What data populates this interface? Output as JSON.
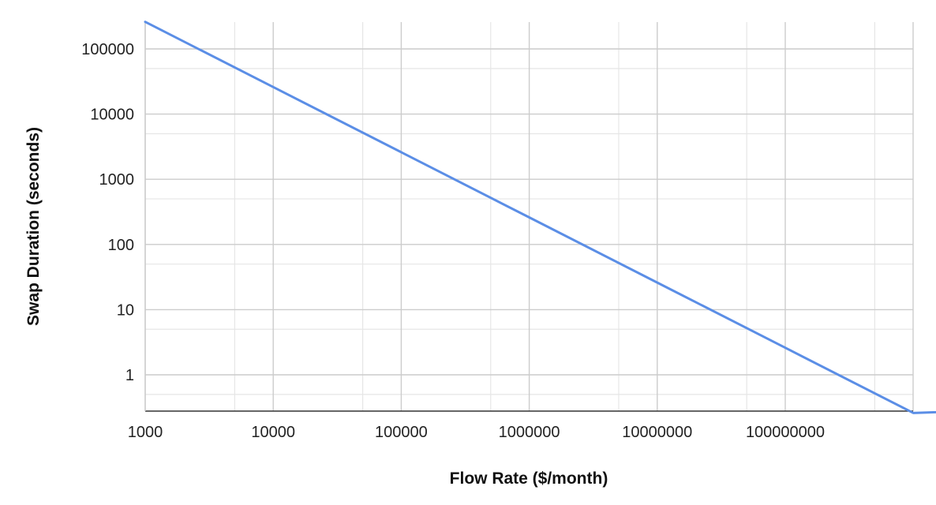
{
  "chart_data": {
    "type": "line",
    "title": "",
    "xlabel": "Flow Rate ($/month)",
    "ylabel": "Swap Duration (seconds)",
    "x_scale": "log",
    "y_scale": "log",
    "xlim": [
      1000,
      9000000000
    ],
    "ylim": [
      0.3,
      260000
    ],
    "x_ticks": [
      "1000",
      "10000",
      "100000",
      "1000000",
      "10000000",
      "100000000"
    ],
    "y_ticks": [
      "1",
      "10",
      "100",
      "1000",
      "10000",
      "100000"
    ],
    "grid": true,
    "legend": "none",
    "series": [
      {
        "color": "#5b8ee6",
        "x": [
          1000,
          10000,
          100000,
          1000000,
          10000000,
          100000000,
          1000000000,
          9000000000
        ],
        "y": [
          260000,
          26000,
          2600,
          260,
          26,
          2.6,
          0.26,
          0.3
        ]
      }
    ]
  }
}
